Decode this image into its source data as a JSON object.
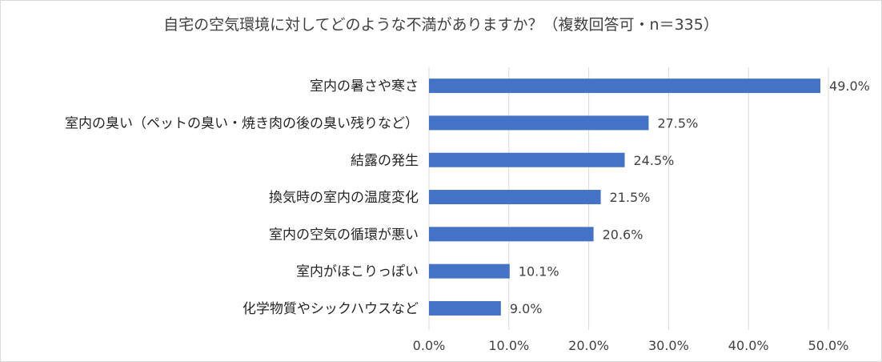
{
  "chart_data": {
    "type": "bar",
    "orientation": "horizontal",
    "title": "自宅の空気環境に対してどのような不満がありますか？（複数回答可・n＝335）",
    "categories": [
      "室内の暑さや寒さ",
      "室内の臭い（ペットの臭い・焼き肉の後の臭い残りなど）",
      "結露の発生",
      "換気時の室内の温度変化",
      "室内の空気の循環が悪い",
      "室内がほこりっぽい",
      "化学物質やシックハウスなど"
    ],
    "values": [
      49.0,
      27.5,
      24.5,
      21.5,
      20.6,
      10.1,
      9.0
    ],
    "value_labels": [
      "49.0%",
      "27.5%",
      "24.5%",
      "21.5%",
      "20.6%",
      "10.1%",
      "9.0%"
    ],
    "xlim": [
      0,
      50
    ],
    "x_ticks": [
      0,
      10,
      20,
      30,
      40,
      50
    ],
    "x_tick_labels": [
      "0.0%",
      "10.0%",
      "20.0%",
      "30.0%",
      "40.0%",
      "50.0%"
    ],
    "grid": "vertical",
    "legend": "none",
    "bar_color": "#4472c4",
    "grid_color": "#d9d9d9"
  }
}
